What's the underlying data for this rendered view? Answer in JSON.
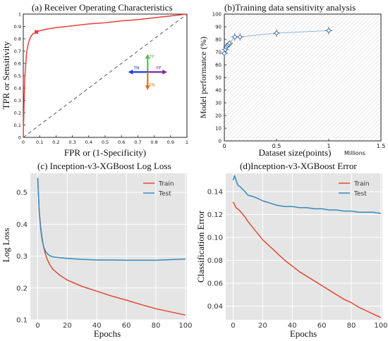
{
  "chart_data": [
    {
      "id": "a",
      "type": "line",
      "title": "(a) Receiver Operating Characteristics",
      "xlabel": "FPR  or  (1-Specificity)",
      "ylabel": "TPR or Sensitivity",
      "xlim": [
        0,
        1
      ],
      "ylim": [
        0,
        1
      ],
      "xticks": [
        "0",
        "0.1",
        "0.2",
        "0.3",
        "0.4",
        "0.5",
        "0.6",
        "0.7",
        "0.8",
        "0.9",
        "1"
      ],
      "yticks": [
        "0",
        "0.1",
        "0.2",
        "0.3",
        "0.4",
        "0.5",
        "0.6",
        "0.7",
        "0.8",
        "0.9",
        "1"
      ],
      "colors": {
        "roc": "#e8403a",
        "diag": "#555555",
        "tp": "#5cb85c",
        "tn": "#1a3fd6",
        "fp": "#7a2c9c",
        "fn": "#d9770e"
      },
      "series": [
        {
          "x": [
            0,
            0.005,
            0.01,
            0.02,
            0.03,
            0.04,
            0.05,
            0.06,
            0.08,
            0.1,
            0.15,
            0.2,
            0.3,
            0.4,
            0.5,
            0.6,
            0.7,
            0.8,
            0.9,
            1.0
          ],
          "y": [
            0,
            0.3,
            0.5,
            0.68,
            0.76,
            0.8,
            0.825,
            0.84,
            0.855,
            0.865,
            0.88,
            0.89,
            0.905,
            0.92,
            0.93,
            0.945,
            0.955,
            0.97,
            0.985,
            1.0
          ]
        }
      ],
      "operating_point": {
        "x": 0.08,
        "y": 0.855
      },
      "diagonal": {
        "x": [
          0,
          1
        ],
        "y": [
          0,
          1
        ]
      },
      "quadrant_labels": {
        "tp": "TP",
        "tn": "TN",
        "fp": "FP",
        "fn": "FN"
      }
    },
    {
      "id": "b",
      "type": "scatter",
      "title": "(b)Training data sensitivity analysis",
      "xlabel": "Dataset size(points)",
      "xlabel_unit": "Millions",
      "ylabel": "Model performance (%)",
      "xlim": [
        0,
        1.5
      ],
      "ylim": [
        0,
        100
      ],
      "xticks": [
        "0",
        "0.5",
        "1",
        "1.5"
      ],
      "yticks": [
        "0",
        "10",
        "20",
        "30",
        "40",
        "50",
        "60",
        "70",
        "80",
        "90",
        "100"
      ],
      "colors": {
        "marker": "#3a6fb5",
        "line": "#8fb3df"
      },
      "points": [
        {
          "x": 0.0,
          "y": 69,
          "err": 2
        },
        {
          "x": 0.01,
          "y": 72,
          "err": 2
        },
        {
          "x": 0.02,
          "y": 74,
          "err": 2
        },
        {
          "x": 0.03,
          "y": 75,
          "err": 2
        },
        {
          "x": 0.04,
          "y": 76,
          "err": 2
        },
        {
          "x": 0.05,
          "y": 77,
          "err": 2
        },
        {
          "x": 0.1,
          "y": 82,
          "err": 3
        },
        {
          "x": 0.15,
          "y": 82,
          "err": 3
        },
        {
          "x": 0.5,
          "y": 85,
          "err": 3
        },
        {
          "x": 1.0,
          "y": 87,
          "err": 3
        }
      ]
    },
    {
      "id": "c",
      "type": "line",
      "title": "(c)   Inception-v3-XGBoost Log Loss",
      "xlabel": "Epochs",
      "ylabel": "Log Loss",
      "xlim": [
        -5,
        101
      ],
      "ylim": [
        0.1,
        0.56
      ],
      "xticks": [
        0,
        20,
        40,
        60,
        80,
        100
      ],
      "yticks": [
        0.1,
        0.2,
        0.3,
        0.4,
        0.5
      ],
      "legend": "top-right",
      "series": [
        {
          "name": "Train",
          "color": "#e24a33",
          "x": [
            0,
            1,
            2,
            3,
            4,
            5,
            6,
            8,
            10,
            15,
            20,
            30,
            40,
            50,
            60,
            70,
            80,
            90,
            100
          ],
          "y": [
            0.545,
            0.44,
            0.39,
            0.355,
            0.33,
            0.31,
            0.295,
            0.275,
            0.26,
            0.24,
            0.225,
            0.205,
            0.19,
            0.175,
            0.162,
            0.148,
            0.135,
            0.125,
            0.115
          ]
        },
        {
          "name": "Test",
          "color": "#348abd",
          "x": [
            0,
            1,
            2,
            3,
            4,
            5,
            6,
            8,
            10,
            15,
            20,
            30,
            40,
            50,
            60,
            70,
            80,
            90,
            100
          ],
          "y": [
            0.545,
            0.44,
            0.385,
            0.35,
            0.33,
            0.318,
            0.31,
            0.302,
            0.298,
            0.295,
            0.293,
            0.29,
            0.288,
            0.288,
            0.287,
            0.287,
            0.287,
            0.289,
            0.291
          ]
        }
      ]
    },
    {
      "id": "d",
      "type": "line",
      "title": "(d)Inception-v3-XGBoost Error",
      "xlabel": "Epochs",
      "ylabel": "Classification Error",
      "xlim": [
        -5,
        101
      ],
      "ylim": [
        0.028,
        0.156
      ],
      "xticks": [
        0,
        20,
        40,
        60,
        80,
        100
      ],
      "yticks": [
        0.04,
        0.06,
        0.08,
        0.1,
        0.12,
        0.14
      ],
      "legend": "top-right",
      "series": [
        {
          "name": "Train",
          "color": "#e24a33",
          "x": [
            0,
            2,
            4,
            6,
            8,
            10,
            15,
            20,
            25,
            30,
            35,
            40,
            45,
            50,
            55,
            60,
            65,
            70,
            75,
            80,
            85,
            90,
            95,
            100
          ],
          "y": [
            0.131,
            0.126,
            0.124,
            0.121,
            0.118,
            0.114,
            0.106,
            0.098,
            0.092,
            0.086,
            0.08,
            0.075,
            0.07,
            0.066,
            0.062,
            0.058,
            0.054,
            0.05,
            0.046,
            0.043,
            0.039,
            0.036,
            0.033,
            0.03
          ]
        },
        {
          "name": "Test",
          "color": "#348abd",
          "x": [
            0,
            1,
            3,
            5,
            8,
            10,
            15,
            20,
            25,
            30,
            35,
            40,
            45,
            50,
            55,
            60,
            65,
            70,
            75,
            80,
            85,
            90,
            95,
            100
          ],
          "y": [
            0.15,
            0.154,
            0.146,
            0.144,
            0.14,
            0.137,
            0.135,
            0.132,
            0.13,
            0.128,
            0.127,
            0.127,
            0.126,
            0.126,
            0.125,
            0.125,
            0.124,
            0.124,
            0.123,
            0.123,
            0.122,
            0.122,
            0.122,
            0.121
          ]
        }
      ]
    }
  ]
}
